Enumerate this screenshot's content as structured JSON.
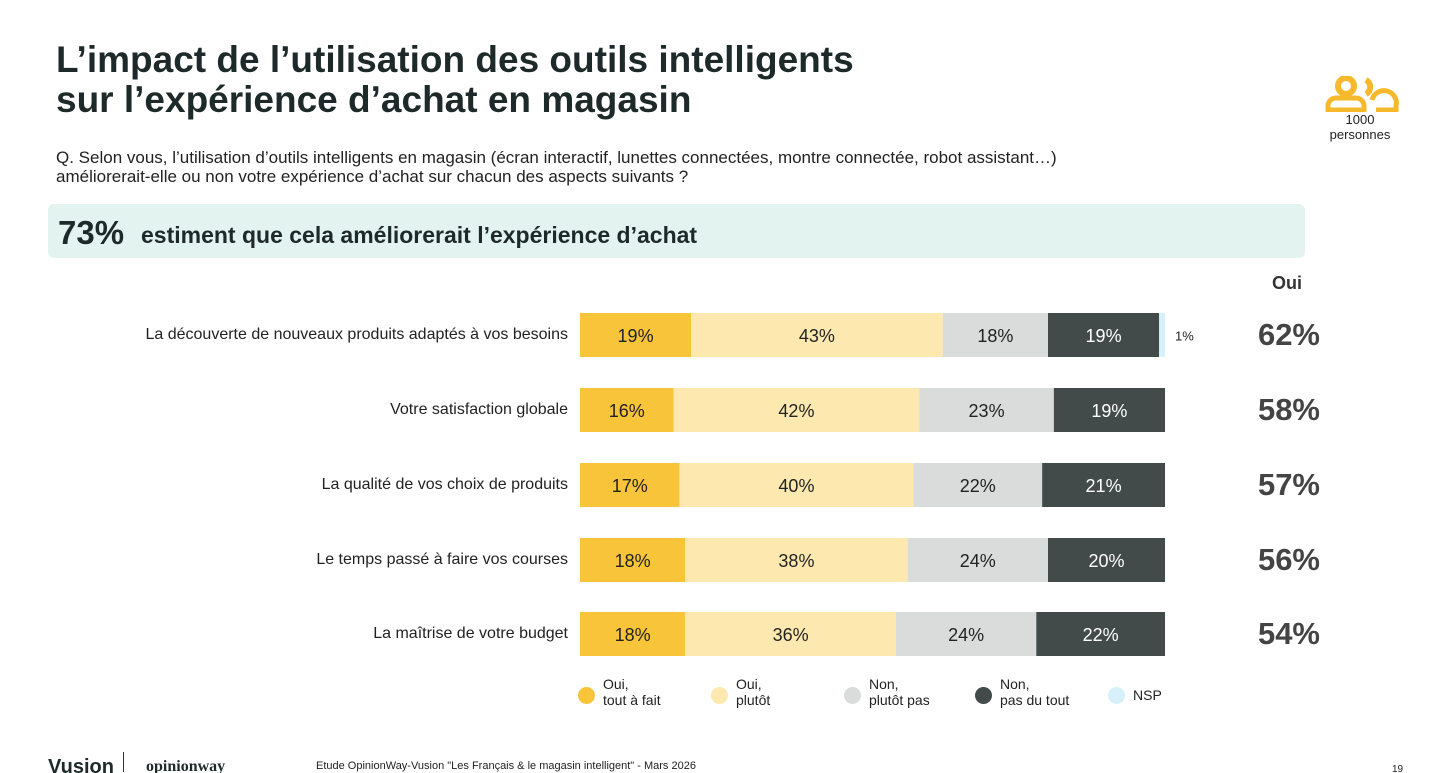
{
  "chart_data": {
    "type": "stacked-bar-horizontal",
    "title": [
      "L’impact de l’utilisation des outils intelligents",
      "sur l’expérience d’achat en magasin"
    ],
    "subtitle": [
      "Q. Selon vous, l’utilisation d’outils intelligents en magasin (écran interactif, lunettes connectées, montre connectée, robot assistant…)",
      "améliorerait-elle ou non votre expérience d’achat sur chacun des aspects suivants ?"
    ],
    "highlight": {
      "value": 73,
      "value_label": "73%",
      "text": "estiment que cela améliorerait l’expérience d’achat"
    },
    "sample_size": 1000,
    "sample_label": "personnes",
    "categories": [
      "La découverte de nouveaux produits adaptés à vos besoins",
      "Votre satisfaction globale",
      "La qualité de vos choix de produits",
      "Le temps passé à faire vos courses",
      "La maîtrise de votre budget"
    ],
    "xlim": [
      0,
      100
    ],
    "series": [
      {
        "name": "Oui,\ntout à fait",
        "color": "#f8c43a",
        "text_color": "#222222",
        "values": [
          19,
          16,
          17,
          18,
          18
        ],
        "value_labels": [
          "19%",
          "16%",
          "17%",
          "18%",
          "18%"
        ]
      },
      {
        "name": "Oui,\nplutôt",
        "color": "#fde9b0",
        "text_color": "#222222",
        "values": [
          43,
          42,
          40,
          38,
          36
        ],
        "value_labels": [
          "43%",
          "42%",
          "40%",
          "38%",
          "36%"
        ]
      },
      {
        "name": "Non,\nplutôt pas",
        "color": "#d9dcdb",
        "text_color": "#222222",
        "values": [
          18,
          23,
          22,
          24,
          24
        ],
        "value_labels": [
          "18%",
          "23%",
          "22%",
          "24%",
          "24%"
        ]
      },
      {
        "name": "Non,\npas du tout",
        "color": "#424a4a",
        "text_color": "#ffffff",
        "values": [
          19,
          19,
          21,
          20,
          22
        ],
        "value_labels": [
          "19%",
          "19%",
          "21%",
          "20%",
          "22%"
        ]
      },
      {
        "name": "NSP",
        "color": "#d6f1fa",
        "text_color": "#222222",
        "values": [
          1,
          null,
          null,
          null,
          null
        ],
        "value_labels": [
          "1%",
          null,
          null,
          null,
          null
        ]
      }
    ],
    "totals": {
      "header": "Oui",
      "values": [
        62,
        58,
        57,
        56,
        54
      ],
      "value_labels": [
        "62%",
        "58%",
        "57%",
        "56%",
        "54%"
      ]
    },
    "brands": [
      "Vusion",
      "opinionway"
    ],
    "source": "Etude OpinionWay-Vusion \"Les Français & le magasin intelligent\" - Mars 2026",
    "page": 19
  }
}
